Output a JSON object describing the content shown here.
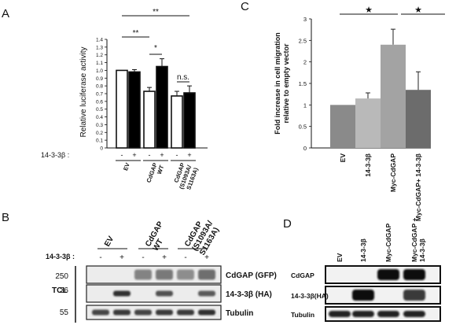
{
  "chart_data": [
    {
      "panel": "A",
      "type": "bar",
      "ylabel": "Relative luciferase activity",
      "ylim": [
        0,
        1.4
      ],
      "yticks": [
        "0",
        "0.1",
        "0.2",
        "0.3",
        "0.4",
        "0.5",
        "0.6",
        "0.7",
        "0.8",
        "0.9",
        "1.0",
        "1.1",
        "1.2",
        "1.3",
        "1.4"
      ],
      "treatment_label": "14-3-3β :",
      "treatment_signs": [
        "-",
        "+",
        "-",
        "+",
        "-",
        "+"
      ],
      "group_labels": [
        "EV",
        "CdGAP WT",
        "CdGAP (S1093A/ S1163A)"
      ],
      "series": [
        {
          "name": "-",
          "color": "#ffffff",
          "values": [
            1.0,
            0.73,
            0.67
          ],
          "errors": [
            0.0,
            0.05,
            0.06
          ]
        },
        {
          "name": "+",
          "color": "#000000",
          "values": [
            0.98,
            1.05,
            0.71
          ],
          "errors": [
            0.03,
            0.1,
            0.09
          ]
        }
      ],
      "significance": [
        "**",
        "**",
        "*",
        "n.s."
      ]
    },
    {
      "panel": "C",
      "type": "bar",
      "ylabel": "Fold increase in cell migration relative to empty vector",
      "ylim": [
        0,
        3
      ],
      "yticks": [
        "0",
        "0.5",
        "1",
        "1.5",
        "2",
        "2.5",
        "3"
      ],
      "categories": [
        "EV",
        "14-3-3β",
        "Myc-CdGAP",
        "Myc-CdGAP+ 14-3-3β"
      ],
      "values": [
        1.0,
        1.15,
        2.4,
        1.35
      ],
      "errors": [
        0.0,
        0.13,
        0.36,
        0.42
      ],
      "colors": [
        "#8a8a8a",
        "#b9b9b9",
        "#a3a3a3",
        "#6c6c6c"
      ],
      "significance": [
        "★",
        "★"
      ]
    }
  ],
  "panelB": {
    "letter": "B",
    "lanes": [
      "EV",
      "CdGAP WT",
      "CdGAP (S1093A/ S1163A)"
    ],
    "treatment_label": "14-3-3β :",
    "signs": [
      "-",
      "+",
      "-",
      "+",
      "-",
      "+"
    ],
    "side_label": "TCL",
    "markers": [
      "250",
      "36",
      "55"
    ],
    "rows": [
      "CdGAP (GFP)",
      "14-3-3β (HA)",
      "Tubulin"
    ]
  },
  "panelD": {
    "letter": "D",
    "lanes": [
      "EV",
      "14-3-3β",
      "Myc-CdGAP",
      "Myc-CdGAP + 14-3-3β"
    ],
    "rows": [
      "CdGAP",
      "14-3-3β(HA)",
      "Tubulin"
    ]
  },
  "letters": {
    "a": "A",
    "c": "C"
  }
}
